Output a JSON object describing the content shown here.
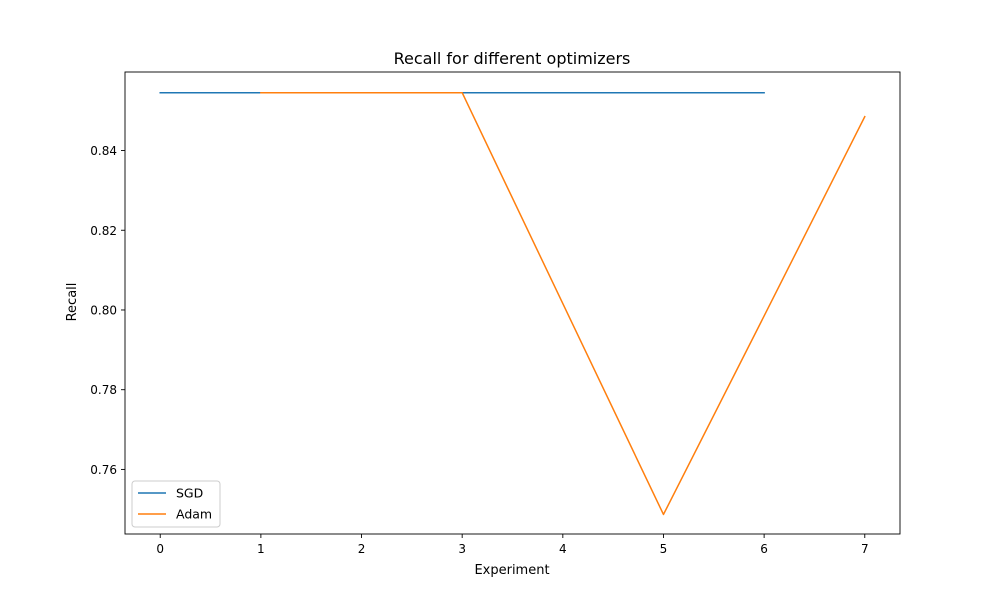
{
  "chart_data": {
    "type": "line",
    "title": "Recall for different optimizers",
    "xlabel": "Experiment",
    "ylabel": "Recall",
    "xlim": [
      -0.35,
      7.35
    ],
    "ylim": [
      0.7438,
      0.8597
    ],
    "xticks": [
      0,
      1,
      2,
      3,
      4,
      5,
      6,
      7
    ],
    "xtick_labels": [
      "0",
      "1",
      "2",
      "3",
      "4",
      "5",
      "6",
      "7"
    ],
    "yticks": [
      0.76,
      0.78,
      0.8,
      0.82,
      0.84
    ],
    "ytick_labels": [
      "0.76",
      "0.78",
      "0.80",
      "0.82",
      "0.84"
    ],
    "grid": false,
    "legend_position": "lower left",
    "series": [
      {
        "name": "SGD",
        "color": "#1f77b4",
        "x": [
          0,
          1,
          2,
          3,
          4,
          5,
          6
        ],
        "values": [
          0.8545,
          0.8545,
          0.8545,
          0.8545,
          0.8545,
          0.8545,
          0.8545
        ]
      },
      {
        "name": "Adam",
        "color": "#ff7f0e",
        "x": [
          1,
          2,
          3,
          4,
          5,
          6,
          7
        ],
        "values": [
          0.8545,
          0.8545,
          0.8545,
          0.8016,
          0.7487,
          0.7985,
          0.8485
        ]
      }
    ]
  }
}
